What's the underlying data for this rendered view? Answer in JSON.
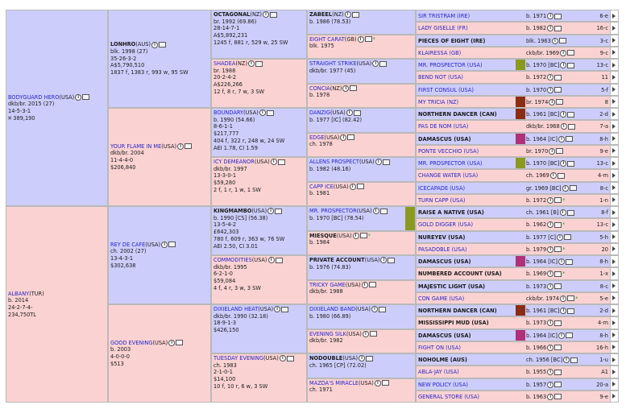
{
  "subject": {
    "name": "BODYGUARD HERO",
    "country": "(USA)",
    "color_year": "dkb/br. 2015 (27)",
    "record": "14-5-3-1",
    "earnings": "¤ 389,190"
  },
  "dam_subject": {
    "name": "ALBANY",
    "country": "(TUR)",
    "color_year": "b. 2014",
    "record": "24-2-7-4-",
    "earnings": "234,750TL"
  },
  "gen1": [
    {
      "name": "LONHRO",
      "country": "(AUS)",
      "lines": [
        "blk. 1998 (27)",
        "35-26-3-2",
        "A$5,790,510",
        "1837 f, 1383 r, 993 w, 95 SW"
      ],
      "sex": "m",
      "bold": true
    },
    {
      "name": "YOUR FLAME IN ME",
      "country": "(USA)",
      "lines": [
        "dkb/br. 2004",
        "11-4-4-0",
        "$206,840"
      ],
      "sex": "f",
      "bold": false
    },
    {
      "name": "REY DE CAFE",
      "country": "(USA)",
      "lines": [
        "ch. 2002 (27)",
        "13-4-3-1",
        "$302,638"
      ],
      "sex": "m",
      "bold": false
    },
    {
      "name": "GOOD EVENING",
      "country": "(USA)",
      "lines": [
        "b. 2003",
        "4-0-0-0",
        "$513"
      ],
      "sex": "f",
      "bold": false
    }
  ],
  "gen2": [
    {
      "name": "OCTAGONAL",
      "country": "(NZ)",
      "lines": [
        "br. 1992 (69.86)",
        "28-14-7-1",
        "A$5,892,231",
        "1245 f, 881 r, 529 w, 25 SW"
      ],
      "sex": "m",
      "bold": true
    },
    {
      "name": "SHADEA",
      "country": "(NZ)",
      "lines": [
        "br. 1988",
        "20-2-4-2",
        "A$226,266",
        "12 f, 8 r, 7 w, 3 SW"
      ],
      "sex": "f",
      "bold": false
    },
    {
      "name": "BOUNDARY",
      "country": "(USA)",
      "lines": [
        "b. 1990 (54.66)",
        "8-6-1-1",
        "$217,777",
        "404 f, 322 r, 248 w, 24 SW",
        "AEI 1.78, CI 1.59"
      ],
      "sex": "m",
      "bold": false
    },
    {
      "name": "ICY DEMEANOR",
      "country": "(USA)",
      "lines": [
        "dkb/br. 1997",
        "13-3-0-1",
        "$59,280",
        "2 f, 1 r, 1 w, 1 SW"
      ],
      "sex": "f",
      "bold": false
    },
    {
      "name": "KINGMAMBO",
      "country": "(USA)",
      "lines": [
        "b. 1990 [CS] (56.38)",
        "13-5-4-2",
        "£642,303",
        "780 f, 609 r, 363 w, 76 SW",
        "AEI 2.50, CI 3.01"
      ],
      "sex": "m",
      "bold": true
    },
    {
      "name": "COMMODITIES",
      "country": "(USA)",
      "lines": [
        "dkb/br. 1995",
        "6-2-1-0",
        "$59,084",
        "4 f, 4 r, 3 w, 3 SW"
      ],
      "sex": "f",
      "bold": false
    },
    {
      "name": "DIXIELAND HEAT",
      "country": "(USA)",
      "lines": [
        "dkb/br. 1990 (32.18)",
        "18-9-1-3",
        "$426,150"
      ],
      "sex": "m",
      "bold": false
    },
    {
      "name": "TUESDAY EVENING",
      "country": "(USA)",
      "lines": [
        "ch. 1983",
        "2-1-0-1",
        "$14,100",
        "10 f, 10 r, 6 w, 3 SW"
      ],
      "sex": "f",
      "bold": false
    }
  ],
  "gen3": [
    {
      "name": "ZABEEL",
      "country": "(NZ)",
      "lines": [
        "b. 1986 (78.53)"
      ],
      "sex": "m",
      "bold": true,
      "star": false
    },
    {
      "name": "EIGHT CARAT",
      "country": "(GB)",
      "lines": [
        "blk. 1975"
      ],
      "sex": "f",
      "bold": false,
      "star": true
    },
    {
      "name": "STRAIGHT STRIKE",
      "country": "(USA)",
      "lines": [
        "dkb/br. 1977 (45)"
      ],
      "sex": "m",
      "bold": false,
      "star": false
    },
    {
      "name": "CONCIA",
      "country": "(NZ)",
      "lines": [
        "b. 1978"
      ],
      "sex": "f",
      "bold": false,
      "star": false
    },
    {
      "name": "DANZIG",
      "country": "(USA)",
      "lines": [
        "b. 1977 [IC] (82.42)"
      ],
      "sex": "m",
      "bold": false,
      "star": false
    },
    {
      "name": "EDGE",
      "country": "(USA)",
      "lines": [
        "ch. 1978"
      ],
      "sex": "f",
      "bold": false,
      "star": false
    },
    {
      "name": "ALLENS PROSPECT",
      "country": "(USA)",
      "lines": [
        "b. 1982 (48.16)"
      ],
      "sex": "m",
      "bold": false,
      "star": false
    },
    {
      "name": "CAPP ICE",
      "country": "(USA)",
      "lines": [
        "b. 1981"
      ],
      "sex": "f",
      "bold": false,
      "star": false
    },
    {
      "name": "MR. PROSPECTOR",
      "country": "(USA)",
      "lines": [
        "b. 1970 [BC] (78.54)"
      ],
      "sex": "m",
      "bold": false,
      "star": false
    },
    {
      "name": "MIESQUE",
      "country": "(USA)",
      "lines": [
        "b. 1984"
      ],
      "sex": "f",
      "bold": true,
      "star": true
    },
    {
      "name": "PRIVATE ACCOUNT",
      "country": "(USA)",
      "lines": [
        "b. 1976 (74.83)"
      ],
      "sex": "m",
      "bold": true,
      "star": false
    },
    {
      "name": "TRICKY GAME",
      "country": "(USA)",
      "lines": [
        "dkb/br. 1988"
      ],
      "sex": "f",
      "bold": false,
      "star": false
    },
    {
      "name": "DIXIELAND BAND",
      "country": "(USA)",
      "lines": [
        "b. 1980 (66.89)"
      ],
      "sex": "m",
      "bold": false,
      "star": false
    },
    {
      "name": "EVENING SILK",
      "country": "(USA)",
      "lines": [
        "dkb/br. 1982"
      ],
      "sex": "f",
      "bold": false,
      "star": false
    },
    {
      "name": "NODOUBLE",
      "country": "(USA)",
      "lines": [
        "ch. 1965 [CP] (72.02)"
      ],
      "sex": "m",
      "bold": true,
      "star": false
    },
    {
      "name": "MAZDA'S MIRACLE",
      "country": "(USA)",
      "lines": [
        "ch. 1971"
      ],
      "sex": "f",
      "bold": false,
      "star": false
    }
  ],
  "gen4": [
    {
      "name": "SIR TRISTRAM (IRE)",
      "info": "b. 1971",
      "count": "6-e",
      "sex": "m",
      "bold": false
    },
    {
      "name": "LADY GISELLE (FR)",
      "info": "b. 1982",
      "count": "16-c",
      "sex": "f",
      "bold": false
    },
    {
      "name": "PIECES OF EIGHT (IRE)",
      "info": "blk. 1963",
      "count": "3-c",
      "sex": "m",
      "bold": true
    },
    {
      "name": "KLAIRESSA (GB)",
      "info": "ckb/br. 1969",
      "count": "9-c",
      "sex": "f",
      "bold": false
    },
    {
      "name": "MR. PROSPECTOR (USA)",
      "info": "b. 1970 [BC]",
      "count": "13-c",
      "sex": "m",
      "bold": false
    },
    {
      "name": "BEND NOT (USA)",
      "info": "b. 1972",
      "count": "11",
      "sex": "f",
      "bold": false
    },
    {
      "name": "FIRST CONSUL (USA)",
      "info": "b. 1970",
      "count": "5-f",
      "sex": "m",
      "bold": false
    },
    {
      "name": "MY TRICIA (NZ)",
      "info": "br. 1974",
      "count": "8",
      "sex": "f",
      "bold": false
    },
    {
      "name": "NORTHERN DANCER (CAN)",
      "info": "b. 1961 [BC]",
      "count": "2-d",
      "sex": "m",
      "bold": true
    },
    {
      "name": "PAS DE NOM (USA)",
      "info": "dkb/br. 1968",
      "count": "7-a",
      "sex": "f",
      "bold": false
    },
    {
      "name": "DAMASCUS (USA)",
      "info": "b. 1964 [IC]",
      "count": "8-h",
      "sex": "m",
      "bold": true
    },
    {
      "name": "PONTE VECCHIO (USA)",
      "info": "br. 1970",
      "count": "9-e",
      "sex": "f",
      "bold": false
    },
    {
      "name": "MR. PROSPECTOR (USA)",
      "info": "b. 1970 [BC]",
      "count": "13-c",
      "sex": "m",
      "bold": false
    },
    {
      "name": "CHANGE WATER (USA)",
      "info": "ch. 1969",
      "count": "4-m",
      "sex": "f",
      "bold": false
    },
    {
      "name": "ICECAPADE (USA)",
      "info": "gr. 1969 [BC]",
      "count": "8-c",
      "sex": "m",
      "bold": false
    },
    {
      "name": "TURN CAPP (USA)",
      "info": "b. 1972",
      "count": "1-n",
      "sex": "f",
      "bold": false
    },
    {
      "name": "RAISE A NATIVE (USA)",
      "info": "ch. 1961 [B]",
      "count": "8-f",
      "sex": "m",
      "bold": true
    },
    {
      "name": "GOLD DIGGER (USA)",
      "info": "b. 1962",
      "count": "13-c",
      "sex": "f",
      "bold": false
    },
    {
      "name": "NUREYEV (USA)",
      "info": "b. 1977 [C]",
      "count": "5-h",
      "sex": "m",
      "bold": true
    },
    {
      "name": "PASADOBLE (USA)",
      "info": "b. 1979",
      "count": "20",
      "sex": "f",
      "bold": false
    },
    {
      "name": "DAMASCUS (USA)",
      "info": "b. 1964 [IC]",
      "count": "8-h",
      "sex": "m",
      "bold": true
    },
    {
      "name": "NUMBERED ACCOUNT (USA)",
      "info": "b. 1969",
      "count": "1-x",
      "sex": "f",
      "bold": true
    },
    {
      "name": "MAJESTIC LIGHT (USA)",
      "info": "b. 1973",
      "count": "8-c",
      "sex": "m",
      "bold": true
    },
    {
      "name": "CON GAME (USA)",
      "info": "ckb/br. 1974",
      "count": "5-e",
      "sex": "f",
      "bold": false
    },
    {
      "name": "NORTHERN DANCER (CAN)",
      "info": "b. 1961 [BC]",
      "count": "2-d",
      "sex": "m",
      "bold": true
    },
    {
      "name": "MISSISSIPPI MUD (USA)",
      "info": "b. 1973",
      "count": "4-m",
      "sex": "f",
      "bold": true
    },
    {
      "name": "DAMASCUS (USA)",
      "info": "b. 1964 [IC]",
      "count": "8-h",
      "sex": "m",
      "bold": true
    },
    {
      "name": "FIGHT ON (USA)",
      "info": "b. 1966",
      "count": "16-h",
      "sex": "f",
      "bold": false
    },
    {
      "name": "NOHOLME (AUS)",
      "info": "ch. 1956 [BC]",
      "count": "1-u",
      "sex": "m",
      "bold": true
    },
    {
      "name": "ABLA-JAY (USA)",
      "info": "b. 1955",
      "count": "A1",
      "sex": "f",
      "bold": false
    },
    {
      "name": "NEW POLICY (USA)",
      "info": "b. 1957",
      "count": "20-a",
      "sex": "m",
      "bold": false
    },
    {
      "name": "GENERAL STORE (USA)",
      "info": "b. 1963",
      "count": "9-e",
      "sex": "f",
      "bold": false
    }
  ],
  "colors": {
    "male_bg": "#cdcdfb",
    "female_bg": "#fbd2d2",
    "link": "#2626c8",
    "swatch_olive": "#8a9a1e",
    "swatch_brown": "#8b2c14",
    "swatch_magenta": "#b0307a"
  }
}
